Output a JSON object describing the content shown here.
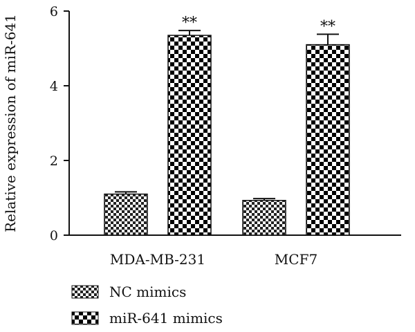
{
  "chart_data": {
    "type": "bar",
    "categories": [
      "MDA-MB-231",
      "MCF7"
    ],
    "series": [
      {
        "name": "NC mimics",
        "values": [
          1.1,
          0.93
        ],
        "errors": [
          0.06,
          0.05
        ],
        "pattern": "fine-check"
      },
      {
        "name": "miR-641 mimics",
        "values": [
          5.35,
          5.1
        ],
        "errors": [
          0.13,
          0.28
        ],
        "pattern": "coarse-check"
      }
    ],
    "annotations": [
      {
        "category": "MDA-MB-231",
        "series": "miR-641 mimics",
        "text": "**"
      },
      {
        "category": "MCF7",
        "series": "miR-641 mimics",
        "text": "**"
      }
    ],
    "ylabel": "Relative expression of miR-641",
    "xlabel": "",
    "ylim": [
      0,
      6
    ],
    "yticks": [
      0,
      2,
      4,
      6
    ],
    "grid": false,
    "legend_position": "bottom-left"
  }
}
